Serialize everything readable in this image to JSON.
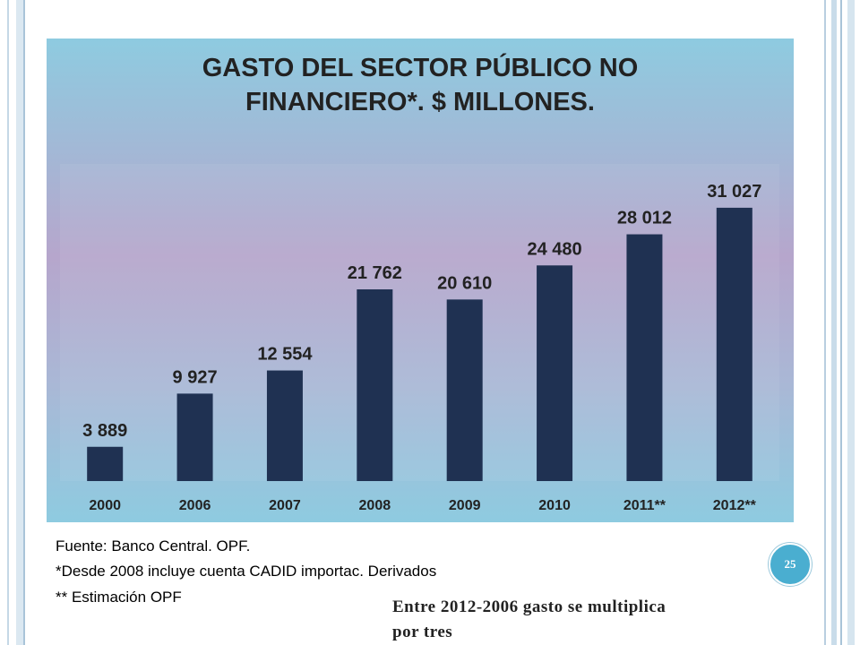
{
  "chart_data": {
    "type": "bar",
    "title": "GASTO DEL SECTOR PÚBLICO NO FINANCIERO*. $ MILLONES.",
    "title_lines": [
      "GASTO DEL SECTOR PÚBLICO NO",
      "FINANCIERO*. $ MILLONES."
    ],
    "categories": [
      "2000",
      "2006",
      "2007",
      "2008",
      "2009",
      "2010",
      "2011**",
      "2012**"
    ],
    "values": [
      3889,
      9927,
      12554,
      21762,
      20610,
      24480,
      28012,
      31027
    ],
    "data_labels": [
      "3 889",
      "9 927",
      "12 554",
      "21 762",
      "20 610",
      "24 480",
      "28 012",
      "31 027"
    ],
    "xlabel": "",
    "ylabel": "",
    "ylim": [
      0,
      36000
    ],
    "grid": false,
    "legend": "none",
    "colors": {
      "bar": "#1f3152",
      "panel_top": "#8ecbe0",
      "panel_mid": "#b6a6cc"
    }
  },
  "footer": {
    "source": "Fuente: Banco Central. OPF.",
    "note1": "*Desde 2008 incluye cuenta CADID importac. Derivados",
    "note2": "** Estimación OPF"
  },
  "page_number": "25",
  "conclusion": "Entre 2012-2006 gasto se multiplica por tres"
}
